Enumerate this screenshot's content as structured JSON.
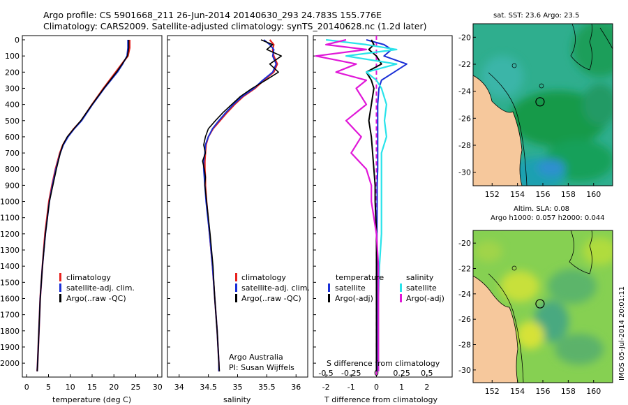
{
  "header": {
    "line1": "Argo profile: CS 5901668_211 26-Jun-2014 20140630_293 24.783S 155.776E",
    "line2": "Climatology: CARS2009. Satellite-adjusted climatology: synTS_20140628.nc (1.2d later)"
  },
  "colors": {
    "climatology": "#e8221e",
    "satellite": "#1a2fd6",
    "argo": "#000000",
    "sal_satellite": "#29e3ea",
    "sal_argo": "#e018d8",
    "land": "#f6c89c"
  },
  "depth_ticks": [
    "0",
    "100",
    "200",
    "300",
    "400",
    "500",
    "600",
    "700",
    "800",
    "900",
    "1000",
    "1100",
    "1200",
    "1300",
    "1400",
    "1500",
    "1600",
    "1700",
    "1800",
    "1900",
    "2000"
  ],
  "chart_data": [
    {
      "type": "line",
      "name": "temperature",
      "xlabel": "temperature (deg C)",
      "ylim": [
        0,
        2060
      ],
      "xlim": [
        -1,
        31
      ],
      "xticks": [
        "0",
        "5",
        "10",
        "15",
        "20",
        "25",
        "30"
      ],
      "legend": [
        "climatology",
        "satellite-adj. clim.",
        "Argo(..raw -QC)"
      ],
      "depth": [
        0,
        50,
        100,
        150,
        200,
        300,
        400,
        500,
        550,
        600,
        650,
        700,
        800,
        900,
        1000,
        1200,
        1400,
        1600,
        1800,
        2000,
        2050
      ],
      "series": [
        {
          "name": "climatology",
          "values": [
            23.6,
            23.6,
            23.2,
            21.8,
            20.4,
            17.6,
            15.0,
            12.5,
            10.8,
            9.4,
            8.3,
            7.6,
            6.6,
            5.8,
            5.1,
            4.2,
            3.6,
            3.1,
            2.8,
            2.5,
            2.4
          ]
        },
        {
          "name": "satellite-adj. clim.",
          "values": [
            23.2,
            23.2,
            23.0,
            22.0,
            20.8,
            17.8,
            15.1,
            12.6,
            10.9,
            9.5,
            8.4,
            7.7,
            6.7,
            5.9,
            5.2,
            4.3,
            3.6,
            3.1,
            2.8,
            2.5,
            2.4
          ]
        },
        {
          "name": "Argo(..raw -QC)",
          "values": [
            23.4,
            23.4,
            23.1,
            21.9,
            20.6,
            17.7,
            15.0,
            12.4,
            10.8,
            9.3,
            8.3,
            7.7,
            6.8,
            6.0,
            5.2,
            4.3,
            3.6,
            3.1,
            2.8,
            2.5,
            2.4
          ]
        }
      ]
    },
    {
      "type": "line",
      "name": "salinity",
      "xlabel": "salinity",
      "ylim": [
        0,
        2060
      ],
      "xlim": [
        33.8,
        36.2
      ],
      "xticks": [
        "34",
        "34.5",
        "35",
        "35.5",
        "36"
      ],
      "legend": [
        "climatology",
        "satellite-adj. clim.",
        "Argo(..raw -QC)"
      ],
      "annotation": [
        "Argo Australia",
        "PI: Susan Wijffels"
      ],
      "depth": [
        0,
        30,
        60,
        100,
        150,
        200,
        250,
        300,
        350,
        400,
        450,
        500,
        550,
        600,
        650,
        700,
        750,
        800,
        850,
        900,
        1000,
        1200,
        1400,
        1600,
        1800,
        2000,
        2050
      ],
      "series": [
        {
          "name": "climatology",
          "values": [
            35.55,
            35.62,
            35.6,
            35.62,
            35.68,
            35.62,
            35.45,
            35.3,
            35.1,
            34.95,
            34.82,
            34.7,
            34.58,
            34.5,
            34.46,
            34.45,
            34.44,
            34.44,
            34.45,
            34.45,
            34.47,
            34.52,
            34.57,
            34.61,
            34.65,
            34.68,
            34.68
          ]
        },
        {
          "name": "satellite-adj. clim.",
          "values": [
            35.45,
            35.55,
            35.62,
            35.6,
            35.66,
            35.6,
            35.43,
            35.28,
            35.08,
            34.93,
            34.8,
            34.68,
            34.57,
            34.5,
            34.45,
            34.44,
            34.42,
            34.42,
            34.43,
            34.44,
            34.46,
            34.52,
            34.57,
            34.61,
            34.65,
            34.68,
            34.68
          ]
        },
        {
          "name": "Argo(..raw -QC)",
          "values": [
            35.4,
            35.6,
            35.5,
            35.75,
            35.55,
            35.7,
            35.48,
            35.25,
            35.05,
            34.9,
            34.75,
            34.62,
            34.5,
            34.45,
            34.42,
            34.45,
            34.4,
            34.43,
            34.45,
            34.44,
            34.47,
            34.53,
            34.58,
            34.61,
            34.65,
            34.68,
            34.69
          ]
        }
      ]
    },
    {
      "type": "line",
      "name": "difference",
      "xlabel": "T difference from climatology",
      "xlabel_top": "S difference from climatology",
      "ylim": [
        0,
        2060
      ],
      "xlim": [
        -2.5,
        3
      ],
      "xticks": [
        "-2",
        "-1",
        "0",
        "1",
        "2"
      ],
      "sticks": [
        "-0.5",
        "-0.25",
        "0",
        "0.25",
        "0.5"
      ],
      "legend_headers": [
        "temperature",
        "salinity"
      ],
      "legend_t": [
        "satellite",
        "Argo(-adj)"
      ],
      "legend_s": [
        "satellite",
        "Argo(-adj)"
      ],
      "depth": [
        0,
        30,
        60,
        100,
        150,
        200,
        250,
        300,
        400,
        500,
        600,
        700,
        800,
        900,
        1000,
        1200,
        1400,
        1600,
        1800,
        2000,
        2050
      ],
      "series": [
        {
          "name": "T satellite",
          "values": [
            -0.4,
            0.3,
            0.6,
            0.3,
            1.2,
            0.7,
            0.2,
            0.1,
            0.05,
            0.05,
            0.05,
            0.05,
            0.05,
            0.03,
            0.03,
            0.02,
            0.02,
            0.02,
            0.02,
            0.02,
            0.02
          ]
        },
        {
          "name": "T Argo(-adj)",
          "values": [
            -0.2,
            -0.1,
            -0.3,
            0.0,
            0.2,
            -0.4,
            -0.2,
            -0.1,
            -0.2,
            -0.3,
            -0.2,
            -0.15,
            -0.1,
            -0.05,
            -0.05,
            0.0,
            0.0,
            0.0,
            0.0,
            0.0,
            0.0
          ]
        },
        {
          "name": "S satellite",
          "values": [
            -0.5,
            -0.1,
            0.2,
            -0.3,
            0.2,
            -0.1,
            0.0,
            0.05,
            0.1,
            0.08,
            0.1,
            0.05,
            0.05,
            0.05,
            0.05,
            0.05,
            0.03,
            0.02,
            0.02,
            0.02,
            0.02
          ]
        },
        {
          "name": "S Argo(-adj)",
          "values": [
            -0.3,
            -0.5,
            -0.1,
            -0.6,
            -0.2,
            -0.4,
            -0.1,
            -0.2,
            -0.1,
            -0.3,
            -0.15,
            -0.25,
            -0.1,
            -0.05,
            -0.05,
            0.0,
            0.02,
            0.02,
            0.02,
            0.02,
            0.02
          ]
        }
      ]
    },
    {
      "type": "heatmap",
      "name": "sst-map",
      "title": "sat. SST: 23.6  Argo: 23.5",
      "xticks": [
        "152",
        "154",
        "156",
        "158",
        "160"
      ],
      "yticks": [
        "-20",
        "-22",
        "-24",
        "-26",
        "-28",
        "-30"
      ],
      "xlim": [
        150.5,
        161.5
      ],
      "ylim": [
        -31,
        -19
      ],
      "argo_position": [
        155.776,
        -24.783
      ]
    },
    {
      "type": "heatmap",
      "name": "sla-map",
      "title_lines": [
        "Altim. SLA: 0.08",
        "Argo h1000: 0.057  h2000: 0.044"
      ],
      "xticks": [
        "152",
        "154",
        "156",
        "158",
        "160"
      ],
      "yticks": [
        "-20",
        "-22",
        "-24",
        "-26",
        "-28",
        "-30"
      ],
      "xlim": [
        150.5,
        161.5
      ],
      "ylim": [
        -31,
        -19
      ],
      "argo_position": [
        155.776,
        -24.783
      ]
    }
  ],
  "stamp": "IMOS 05-Jul-2014 20:01:11"
}
